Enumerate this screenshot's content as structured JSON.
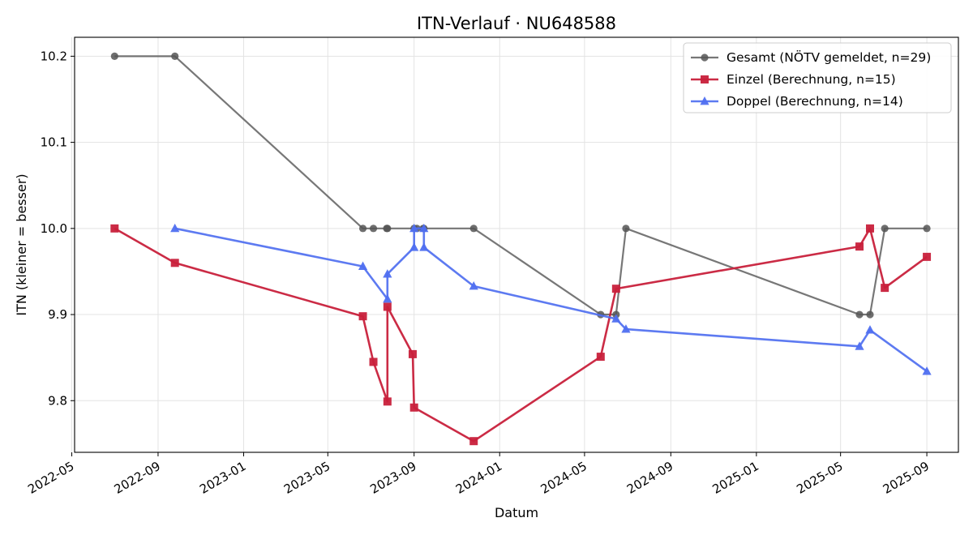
{
  "chart_data": {
    "type": "line",
    "title": "ITN-Verlauf · NU648588",
    "xlabel": "Datum",
    "ylabel": "ITN  (kleiner = besser)",
    "x_type": "date",
    "xlim": [
      "2022-05-05",
      "2025-10-16"
    ],
    "ylim": [
      9.74,
      10.222
    ],
    "x_ticks": [
      "2022-05-01",
      "2022-09-01",
      "2023-01-01",
      "2023-05-01",
      "2023-09-01",
      "2024-01-01",
      "2024-05-01",
      "2024-09-01",
      "2025-01-01",
      "2025-05-01",
      "2025-09-01"
    ],
    "x_tick_labels": [
      "2022-05",
      "2022-09",
      "2023-01",
      "2023-05",
      "2023-09",
      "2024-01",
      "2024-05",
      "2024-09",
      "2025-01",
      "2025-05",
      "2025-09"
    ],
    "y_ticks": [
      9.8,
      9.9,
      10.0,
      10.1,
      10.2
    ],
    "y_tick_labels": [
      "9.8",
      "9.9",
      "10.0",
      "10.1",
      "10.2"
    ],
    "grid": true,
    "legend_position": "top-right",
    "series": [
      {
        "name": "Gesamt (NÖTV gemeldet, n=29)",
        "color": "#555555",
        "marker": "circle",
        "points": [
          [
            "2022-07-01",
            10.2
          ],
          [
            "2022-09-25",
            10.2
          ],
          [
            "2023-06-20",
            10.0
          ],
          [
            "2023-07-05",
            10.0
          ],
          [
            "2023-07-24",
            10.0
          ],
          [
            "2023-07-25",
            10.0
          ],
          [
            "2023-09-01",
            10.0
          ],
          [
            "2023-09-05",
            10.0
          ],
          [
            "2023-09-14",
            10.0
          ],
          [
            "2023-09-15",
            10.0
          ],
          [
            "2023-11-25",
            10.0
          ],
          [
            "2024-05-24",
            9.9
          ],
          [
            "2024-06-15",
            9.9
          ],
          [
            "2024-06-29",
            10.0
          ],
          [
            "2025-05-28",
            9.9
          ],
          [
            "2025-06-12",
            9.9
          ],
          [
            "2025-07-03",
            10.0
          ],
          [
            "2025-09-01",
            10.0
          ]
        ]
      },
      {
        "name": "Einzel (Berechnung, n=15)",
        "color": "#c8203b",
        "marker": "square",
        "points": [
          [
            "2022-07-01",
            10.0
          ],
          [
            "2022-09-25",
            9.96
          ],
          [
            "2023-06-20",
            9.898
          ],
          [
            "2023-07-05",
            9.845
          ],
          [
            "2023-07-25",
            9.799
          ],
          [
            "2023-07-25",
            9.909
          ],
          [
            "2023-08-30",
            9.854
          ],
          [
            "2023-09-01",
            9.792
          ],
          [
            "2023-11-25",
            9.753
          ],
          [
            "2024-05-24",
            9.851
          ],
          [
            "2024-06-15",
            9.93
          ],
          [
            "2025-05-28",
            9.979
          ],
          [
            "2025-06-12",
            10.0
          ],
          [
            "2025-07-03",
            9.931
          ],
          [
            "2025-09-01",
            9.967
          ]
        ]
      },
      {
        "name": "Doppel (Berechnung, n=14)",
        "color": "#4f6ff0",
        "marker": "triangle",
        "points": [
          [
            "2022-09-25",
            10.0
          ],
          [
            "2023-06-20",
            9.956
          ],
          [
            "2023-07-25",
            9.918
          ],
          [
            "2023-07-25",
            9.947
          ],
          [
            "2023-09-01",
            9.978
          ],
          [
            "2023-09-01",
            10.0
          ],
          [
            "2023-09-15",
            10.0
          ],
          [
            "2023-09-15",
            9.978
          ],
          [
            "2023-11-25",
            9.933
          ],
          [
            "2024-06-15",
            9.895
          ],
          [
            "2024-06-29",
            9.883
          ],
          [
            "2025-05-28",
            9.863
          ],
          [
            "2025-06-12",
            9.882
          ],
          [
            "2025-09-01",
            9.834
          ]
        ]
      }
    ]
  }
}
